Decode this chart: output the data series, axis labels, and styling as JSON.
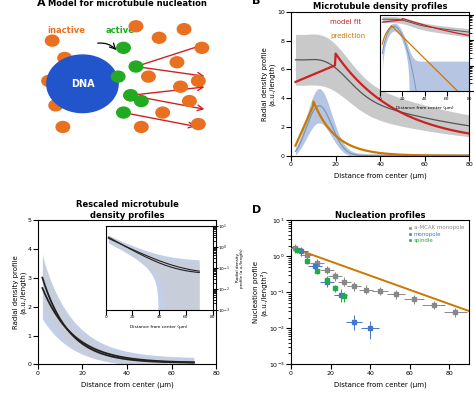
{
  "panel_A": {
    "title": "Model for microtubule nucleation",
    "label": "A",
    "dna_color": "#2255cc",
    "inactive_color": "#e87020",
    "active_color": "#22aa22",
    "mt_color": "#cc2222",
    "inactive_text": "inactive",
    "active_text": "active",
    "dna_text": "DNA"
  },
  "panel_B": {
    "title": "Microtubule density profiles",
    "label": "B",
    "xlabel": "Distance from center (μm)",
    "ylabel": "Radial density profile\n(a.u./length)",
    "xlim": [
      0,
      80
    ],
    "ylim": [
      0,
      10
    ],
    "legend_model_fit": "model fit",
    "legend_prediction": "prediction",
    "model_fit_color": "#cc2222",
    "prediction_color": "#cc7700",
    "gray_mean_color": "#555555",
    "gray_fill_color": "#c0c0c0",
    "blue_mean_color": "#7799bb",
    "blue_fill_color": "#aabbdd"
  },
  "panel_C": {
    "title": "Rescaled microtubule\ndensity profiles",
    "label": "C",
    "xlabel": "Distance from center (μm)",
    "ylabel": "Radial density profile\n(a.u./length)",
    "xlim": [
      0,
      80
    ],
    "ylim": [
      0,
      5
    ],
    "mean_color": "#222222",
    "fill_color": "#aabbdd",
    "fill_color2": "#cccccc"
  },
  "panel_D": {
    "title": "Nucleation profiles",
    "label": "D",
    "xlabel": "Distance from center (μm)",
    "ylabel": "Nucleation profile\n(a.u./length²)",
    "xlim": [
      0,
      90
    ],
    "legend_amcak": "a-MCAK monopole",
    "legend_monopole": "monopole",
    "legend_spindle": "spindle",
    "amcak_color": "#888888",
    "monopole_color": "#4477cc",
    "spindle_color": "#22aa44",
    "fit_color": "#cc7700"
  },
  "background_color": "#ffffff"
}
